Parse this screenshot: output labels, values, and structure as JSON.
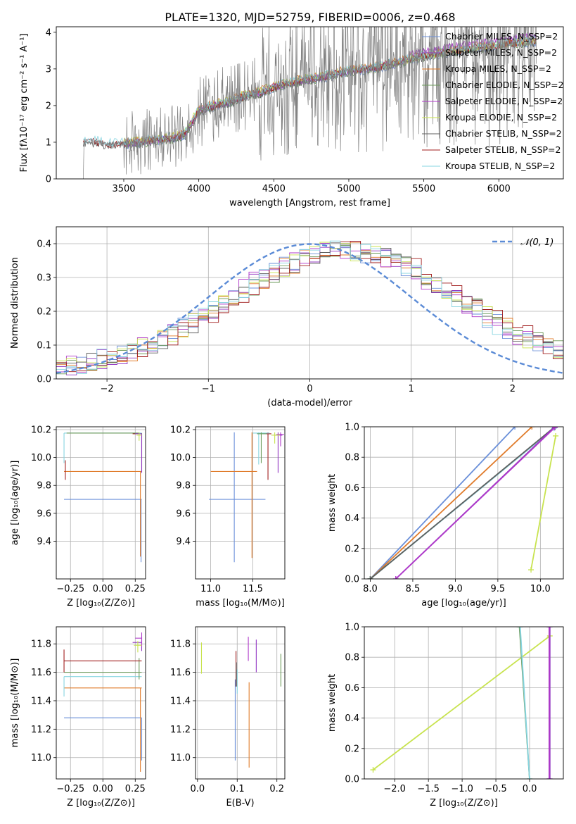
{
  "figure": {
    "title": "PLATE=1320, MJD=52759, FIBERID=0006, z=0.468"
  },
  "colors": {
    "chabrier_miles": "#6a8fd9",
    "salpeter_miles": "#9237c2",
    "kroupa_miles": "#e07b2a",
    "chabrier_elodie": "#6e9b5c",
    "salpeter_elodie": "#b03aca",
    "kroupa_elodie": "#c8e34f",
    "chabrier_stelib": "#5f5f5f",
    "salpeter_stelib": "#a01d1d",
    "kroupa_stelib": "#86d4e0",
    "data": "#808080",
    "normal": "#5b8bd6"
  },
  "chart_data": [
    {
      "id": "spectrum",
      "type": "line",
      "xlabel": "wavelength [Angstrom, rest frame]",
      "ylabel": "Flux [fλ10⁻¹⁷ erg cm⁻² s⁻¹ A⁻¹]",
      "xlim": [
        3050,
        6430
      ],
      "ylim": [
        0,
        4.15
      ],
      "xticks": [
        3500,
        4000,
        4500,
        5000,
        5500,
        6000
      ],
      "yticks": [
        0,
        1,
        2,
        3,
        4
      ],
      "legend_position": "top-right",
      "series": [
        {
          "name": "Chabrier MILES, N_SSP=2",
          "color_key": "chabrier_miles"
        },
        {
          "name": "Salpeter MILES, N_SSP=2",
          "color_key": "salpeter_miles"
        },
        {
          "name": "Kroupa MILES, N_SSP=2",
          "color_key": "kroupa_miles"
        },
        {
          "name": "Chabrier ELODIE, N_SSP=2",
          "color_key": "chabrier_elodie"
        },
        {
          "name": "Salpeter ELODIE, N_SSP=2",
          "color_key": "salpeter_elodie"
        },
        {
          "name": "Kroupa ELODIE, N_SSP=2",
          "color_key": "kroupa_elodie"
        },
        {
          "name": "Chabrier STELIB, N_SSP=2",
          "color_key": "chabrier_stelib"
        },
        {
          "name": "Salpeter STELIB, N_SSP=2",
          "color_key": "salpeter_stelib"
        },
        {
          "name": "Kroupa STELIB, N_SSP=2",
          "color_key": "kroupa_stelib"
        }
      ],
      "continuum": {
        "x": [
          3230,
          3300,
          3400,
          3500,
          3600,
          3700,
          3800,
          3900,
          4000,
          4100,
          4200,
          4300,
          4400,
          4500,
          4600,
          4700,
          4800,
          4900,
          5000,
          5100,
          5200,
          5300,
          5400,
          5500,
          5600,
          5700,
          5800,
          5900,
          6000,
          6100,
          6200
        ],
        "y": [
          1.0,
          1.02,
          0.95,
          0.98,
          1.0,
          1.05,
          1.1,
          1.2,
          1.85,
          2.0,
          2.1,
          2.25,
          2.35,
          2.5,
          2.6,
          2.7,
          2.75,
          2.85,
          2.95,
          3.0,
          3.05,
          3.15,
          3.25,
          3.35,
          3.4,
          3.5,
          3.55,
          3.6,
          3.65,
          3.7,
          3.75
        ]
      }
    },
    {
      "id": "residual-hist",
      "type": "line",
      "xlabel": "(data-model)/error",
      "ylabel": "Normed distribution",
      "xlim": [
        -2.5,
        2.5
      ],
      "ylim": [
        0,
        0.45
      ],
      "xticks": [
        -2,
        -1,
        0,
        1,
        2
      ],
      "yticks": [
        0.0,
        0.1,
        0.2,
        0.3,
        0.4
      ],
      "legend": "𝒩(0, 1)",
      "normal": {
        "mean": 0,
        "sigma": 1
      }
    },
    {
      "id": "age-vs-Z",
      "type": "line",
      "xlabel": "Z [log₁₀(Z/Z⊙)]",
      "ylabel": "age  [log₁₀(age/yr)]",
      "xlim": [
        -0.36,
        0.33
      ],
      "ylim": [
        9.13,
        10.22
      ],
      "xticks": [
        -0.25,
        0.0,
        0.25
      ],
      "xticklabels": [
        "−0.25",
        "0.00",
        "0.25"
      ],
      "yticks": [
        9.4,
        9.6,
        9.8,
        10.0,
        10.2
      ],
      "series": [
        {
          "color_key": "chabrier_miles",
          "hline": 9.7,
          "x0": -0.3,
          "x1": 0.3,
          "vline_x": 0.295,
          "vline": [
            9.25,
            9.7
          ]
        },
        {
          "color_key": "kroupa_miles",
          "hline": 9.9,
          "x0": -0.3,
          "x1": 0.3,
          "vline_x": 0.29,
          "vline": [
            9.29,
            9.9
          ]
        },
        {
          "color_key": "salpeter_stelib",
          "hline": 10.17,
          "x0": 0.23,
          "x1": 0.3,
          "vline_x": -0.29,
          "vline": [
            9.84,
            9.98
          ]
        },
        {
          "color_key": "kroupa_stelib",
          "hline": 10.175,
          "x0": -0.3,
          "x1": 0.3,
          "vline_x": -0.3,
          "vline": [
            9.96,
            10.175
          ]
        },
        {
          "color_key": "chabrier_elodie",
          "hline": 10.175,
          "x0": -0.28,
          "x1": 0.28,
          "vline_x": 0.3,
          "vline": [
            9.9,
            10.175
          ]
        },
        {
          "color_key": "salpeter_miles",
          "hline": 10.17,
          "x0": 0.25,
          "x1": 0.3,
          "vline_x": 0.3,
          "vline": [
            9.89,
            10.17
          ]
        },
        {
          "color_key": "kroupa_elodie",
          "hline": 10.16,
          "x0": 0.26,
          "x1": 0.3,
          "vline_x": 0.28,
          "vline": [
            10.12,
            10.18
          ]
        }
      ]
    },
    {
      "id": "age-vs-mass",
      "type": "line",
      "xlabel": "mass [log₁₀(M/M⊙)]",
      "ylabel": "",
      "xlim": [
        10.82,
        11.88
      ],
      "ylim": [
        9.13,
        10.22
      ],
      "xticks": [
        11.0,
        11.5
      ],
      "yticks": [
        9.4,
        9.6,
        9.8,
        10.0,
        10.2
      ],
      "crosses": [
        {
          "color_key": "chabrier_miles",
          "x": 11.28,
          "xerr": [
            10.98,
            11.65
          ],
          "y": 9.7,
          "yerr": [
            9.25,
            10.18
          ]
        },
        {
          "color_key": "kroupa_miles",
          "x": 11.49,
          "xerr": [
            11.0,
            11.55
          ],
          "y": 9.9,
          "yerr": [
            9.28,
            10.18
          ]
        },
        {
          "color_key": "salpeter_stelib",
          "x": 11.68,
          "xerr": [
            11.62,
            11.72
          ],
          "y": 10.17,
          "yerr": [
            9.84,
            10.18
          ]
        },
        {
          "color_key": "kroupa_stelib",
          "x": 11.57,
          "xerr": [
            11.5,
            11.7
          ],
          "y": 10.175,
          "yerr": [
            9.95,
            10.18
          ]
        },
        {
          "color_key": "chabrier_elodie",
          "x": 11.6,
          "xerr": [
            11.55,
            11.66
          ],
          "y": 10.17,
          "yerr": [
            9.96,
            10.18
          ]
        },
        {
          "color_key": "salpeter_miles",
          "x": 11.8,
          "xerr": [
            11.75,
            11.85
          ],
          "y": 10.16,
          "yerr": [
            9.89,
            10.18
          ]
        },
        {
          "color_key": "salpeter_elodie",
          "x": 11.83,
          "xerr": [
            11.78,
            11.87
          ],
          "y": 10.165,
          "yerr": [
            10.08,
            10.18
          ]
        },
        {
          "color_key": "kroupa_elodie",
          "x": 11.76,
          "xerr": [
            11.72,
            11.82
          ],
          "y": 10.16,
          "yerr": [
            10.1,
            10.18
          ]
        }
      ]
    },
    {
      "id": "massweight-vs-age",
      "type": "line",
      "xlabel": "age  [log₁₀(age/yr)]",
      "ylabel": "mass weight",
      "xlim": [
        7.93,
        10.27
      ],
      "ylim": [
        0,
        1.0
      ],
      "xticks": [
        8.0,
        8.5,
        9.0,
        9.5,
        10.0
      ],
      "yticks": [
        0.0,
        0.2,
        0.4,
        0.6,
        0.8,
        1.0
      ],
      "series": [
        {
          "color_key": "chabrier_miles",
          "x": [
            8.0,
            9.7
          ],
          "y": [
            0.0,
            1.0
          ]
        },
        {
          "color_key": "kroupa_miles",
          "x": [
            8.0,
            9.9
          ],
          "y": [
            0.0,
            1.0
          ]
        },
        {
          "color_key": "chabrier_elodie",
          "x": [
            8.0,
            10.175
          ],
          "y": [
            0.0,
            1.0
          ]
        },
        {
          "color_key": "kroupa_stelib",
          "x": [
            8.0,
            10.16
          ],
          "y": [
            0.0,
            0.99
          ]
        },
        {
          "color_key": "chabrier_stelib",
          "x": [
            8.0,
            10.17
          ],
          "y": [
            0.0,
            1.0
          ]
        },
        {
          "color_key": "salpeter_miles",
          "x": [
            8.3,
            10.17
          ],
          "y": [
            0.0,
            1.0
          ]
        },
        {
          "color_key": "salpeter_elodie",
          "x": [
            8.3,
            10.17
          ],
          "y": [
            0.0,
            0.995
          ]
        },
        {
          "color_key": "kroupa_elodie",
          "x": [
            9.89,
            10.18
          ],
          "y": [
            0.06,
            0.94
          ]
        }
      ]
    },
    {
      "id": "mass-vs-Z",
      "type": "line",
      "xlabel": "Z [log₁₀(Z/Z⊙)]",
      "ylabel": "mass [log₁₀(M/M⊙)]",
      "xlim": [
        -0.36,
        0.33
      ],
      "ylim": [
        10.85,
        11.92
      ],
      "xticks": [
        -0.25,
        0.0,
        0.25
      ],
      "xticklabels": [
        "−0.25",
        "0.00",
        "0.25"
      ],
      "yticks": [
        11.0,
        11.2,
        11.4,
        11.6,
        11.8
      ],
      "series": [
        {
          "color_key": "chabrier_miles",
          "hline": 11.28,
          "x0": -0.3,
          "x1": 0.3,
          "vline_x": 0.3,
          "vline": [
            10.98,
            11.28
          ]
        },
        {
          "color_key": "kroupa_miles",
          "hline": 11.49,
          "x0": -0.3,
          "x1": 0.3,
          "vline_x": 0.29,
          "vline": [
            10.9,
            11.49
          ]
        },
        {
          "color_key": "kroupa_stelib",
          "hline": 11.57,
          "x0": -0.3,
          "x1": 0.3,
          "vline_x": -0.3,
          "vline": [
            11.43,
            11.57
          ]
        },
        {
          "color_key": "chabrier_elodie",
          "hline": 11.6,
          "x0": -0.3,
          "x1": 0.3,
          "vline_x": 0.28,
          "vline": [
            11.55,
            11.7
          ]
        },
        {
          "color_key": "salpeter_stelib",
          "hline": 11.68,
          "x0": -0.3,
          "x1": 0.3,
          "vline_x": -0.3,
          "vline": [
            11.6,
            11.76
          ]
        },
        {
          "color_key": "salpeter_miles",
          "hline": 11.81,
          "x0": 0.23,
          "x1": 0.3,
          "vline_x": 0.3,
          "vline": [
            11.75,
            11.85
          ]
        },
        {
          "color_key": "salpeter_elodie",
          "hline": 11.84,
          "x0": 0.25,
          "x1": 0.3,
          "vline_x": 0.3,
          "vline": [
            11.78,
            11.88
          ]
        },
        {
          "color_key": "kroupa_elodie",
          "hline": 11.79,
          "x0": 0.24,
          "x1": 0.3,
          "vline_x": 0.27,
          "vline": [
            11.74,
            11.82
          ]
        }
      ]
    },
    {
      "id": "mass-vs-EBV",
      "type": "line",
      "xlabel": "E(B-V)",
      "ylabel": "",
      "xlim": [
        -0.005,
        0.22
      ],
      "ylim": [
        10.85,
        11.92
      ],
      "xticks": [
        0.0,
        0.1,
        0.2
      ],
      "yticks": [
        11.0,
        11.2,
        11.4,
        11.6,
        11.8
      ],
      "vlines": [
        {
          "color_key": "kroupa_elodie",
          "x": 0.01,
          "y": [
            11.59,
            11.81
          ]
        },
        {
          "color_key": "chabrier_miles",
          "x": 0.095,
          "y": [
            10.98,
            11.55
          ]
        },
        {
          "color_key": "salpeter_stelib",
          "x": 0.097,
          "y": [
            11.5,
            11.75
          ]
        },
        {
          "color_key": "kroupa_stelib",
          "x": 0.1,
          "y": [
            11.45,
            11.62
          ]
        },
        {
          "color_key": "chabrier_stelib",
          "x": 0.098,
          "y": [
            11.5,
            11.67
          ]
        },
        {
          "color_key": "kroupa_miles",
          "x": 0.13,
          "y": [
            10.93,
            11.53
          ]
        },
        {
          "color_key": "salpeter_elodie",
          "x": 0.128,
          "y": [
            11.68,
            11.85
          ]
        },
        {
          "color_key": "salpeter_miles",
          "x": 0.148,
          "y": [
            11.6,
            11.83
          ]
        },
        {
          "color_key": "chabrier_elodie",
          "x": 0.21,
          "y": [
            11.5,
            11.73
          ]
        }
      ]
    },
    {
      "id": "massweight-vs-Z",
      "type": "line",
      "xlabel": "Z [log₁₀(Z/Z⊙)]",
      "ylabel": "mass weight",
      "xlim": [
        -2.45,
        0.5
      ],
      "ylim": [
        0,
        1.0
      ],
      "xticks": [
        -2.0,
        -1.5,
        -1.0,
        -0.5,
        0.0
      ],
      "xticklabels": [
        "−2.0",
        "−1.5",
        "−1.0",
        "−0.5",
        "0.0"
      ],
      "yticks": [
        0.0,
        0.2,
        0.4,
        0.6,
        0.8,
        1.0
      ],
      "series": [
        {
          "color_key": "kroupa_elodie",
          "x": [
            -2.32,
            0.3
          ],
          "y": [
            0.06,
            0.94
          ]
        },
        {
          "color_key": "chabrier_elodie",
          "x": [
            -0.15,
            -0.0
          ],
          "y": [
            1.0,
            0.0
          ]
        },
        {
          "color_key": "kroupa_stelib",
          "x": [
            -0.14,
            0.0
          ],
          "y": [
            1.0,
            0.0
          ]
        },
        {
          "color_key": "salpeter_miles",
          "x": [
            0.3,
            0.3
          ],
          "y": [
            0.0,
            1.0
          ]
        },
        {
          "color_key": "salpeter_elodie",
          "x": [
            0.29,
            0.29
          ],
          "y": [
            0.0,
            1.0
          ]
        }
      ]
    }
  ]
}
